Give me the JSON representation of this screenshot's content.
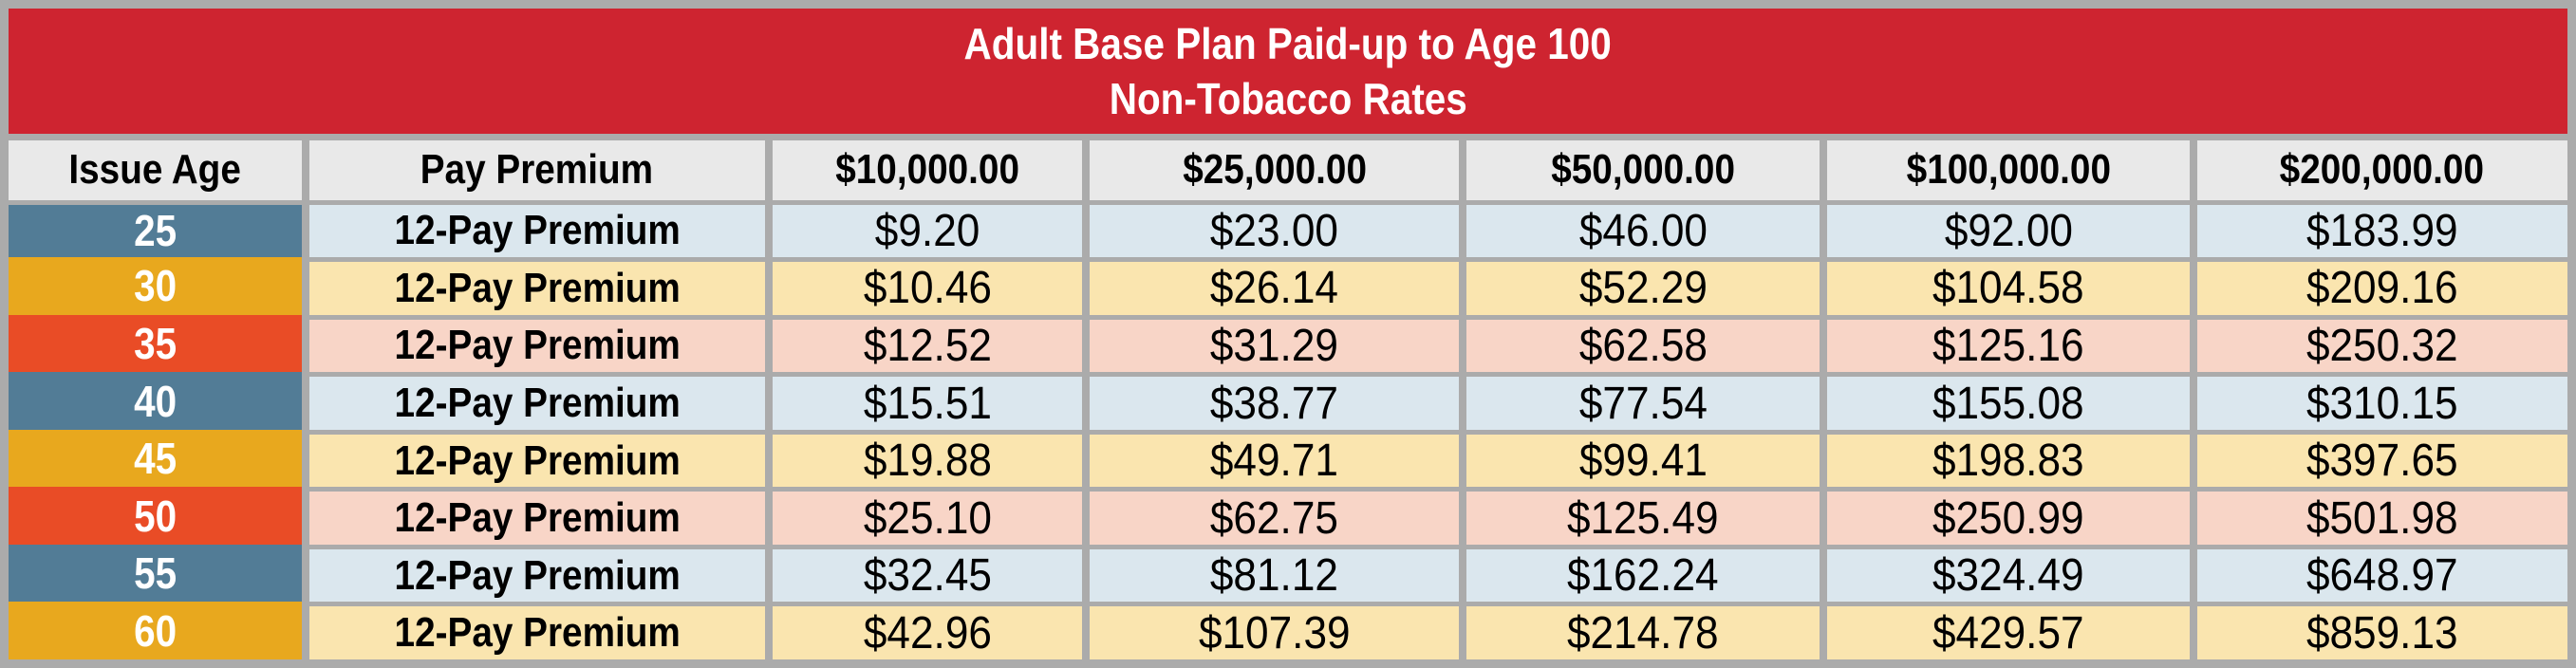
{
  "title": {
    "line1": "Adult Base Plan Paid-up to Age 100",
    "line2": "Non-Tobacco Rates"
  },
  "table": {
    "columns": [
      "Issue Age",
      "Pay Premium",
      "$10,000.00",
      "$25,000.00",
      "$50,000.00",
      "$100,000.00",
      "$200,000.00"
    ],
    "rows": [
      {
        "age": "25",
        "label": "12-Pay Premium",
        "values": [
          "$9.20",
          "$23.00",
          "$46.00",
          "$92.00",
          "$183.99"
        ]
      },
      {
        "age": "30",
        "label": "12-Pay Premium",
        "values": [
          "$10.46",
          "$26.14",
          "$52.29",
          "$104.58",
          "$209.16"
        ]
      },
      {
        "age": "35",
        "label": "12-Pay Premium",
        "values": [
          "$12.52",
          "$31.29",
          "$62.58",
          "$125.16",
          "$250.32"
        ]
      },
      {
        "age": "40",
        "label": "12-Pay Premium",
        "values": [
          "$15.51",
          "$38.77",
          "$77.54",
          "$155.08",
          "$310.15"
        ]
      },
      {
        "age": "45",
        "label": "12-Pay Premium",
        "values": [
          "$19.88",
          "$49.71",
          "$99.41",
          "$198.83",
          "$397.65"
        ]
      },
      {
        "age": "50",
        "label": "12-Pay Premium",
        "values": [
          "$25.10",
          "$62.75",
          "$125.49",
          "$250.99",
          "$501.98"
        ]
      },
      {
        "age": "55",
        "label": "12-Pay Premium",
        "values": [
          "$32.45",
          "$81.12",
          "$162.24",
          "$324.49",
          "$648.97"
        ]
      },
      {
        "age": "60",
        "label": "12-Pay Premium",
        "values": [
          "$42.96",
          "$107.39",
          "$214.78",
          "$429.57",
          "$859.13"
        ]
      }
    ]
  },
  "colors": {
    "banner_red": "#CE2430",
    "frame_gray": "#ABABAB",
    "header_bg": "#E9E9E9",
    "age_blue": "#527C96",
    "age_gold": "#E8A81E",
    "age_orange": "#E94C26",
    "row_blue": "#DBE7EE",
    "row_gold": "#FAE5AF",
    "row_pink": "#F8D5C7",
    "title_text": "#FFFFFF",
    "cell_text": "#000000"
  }
}
